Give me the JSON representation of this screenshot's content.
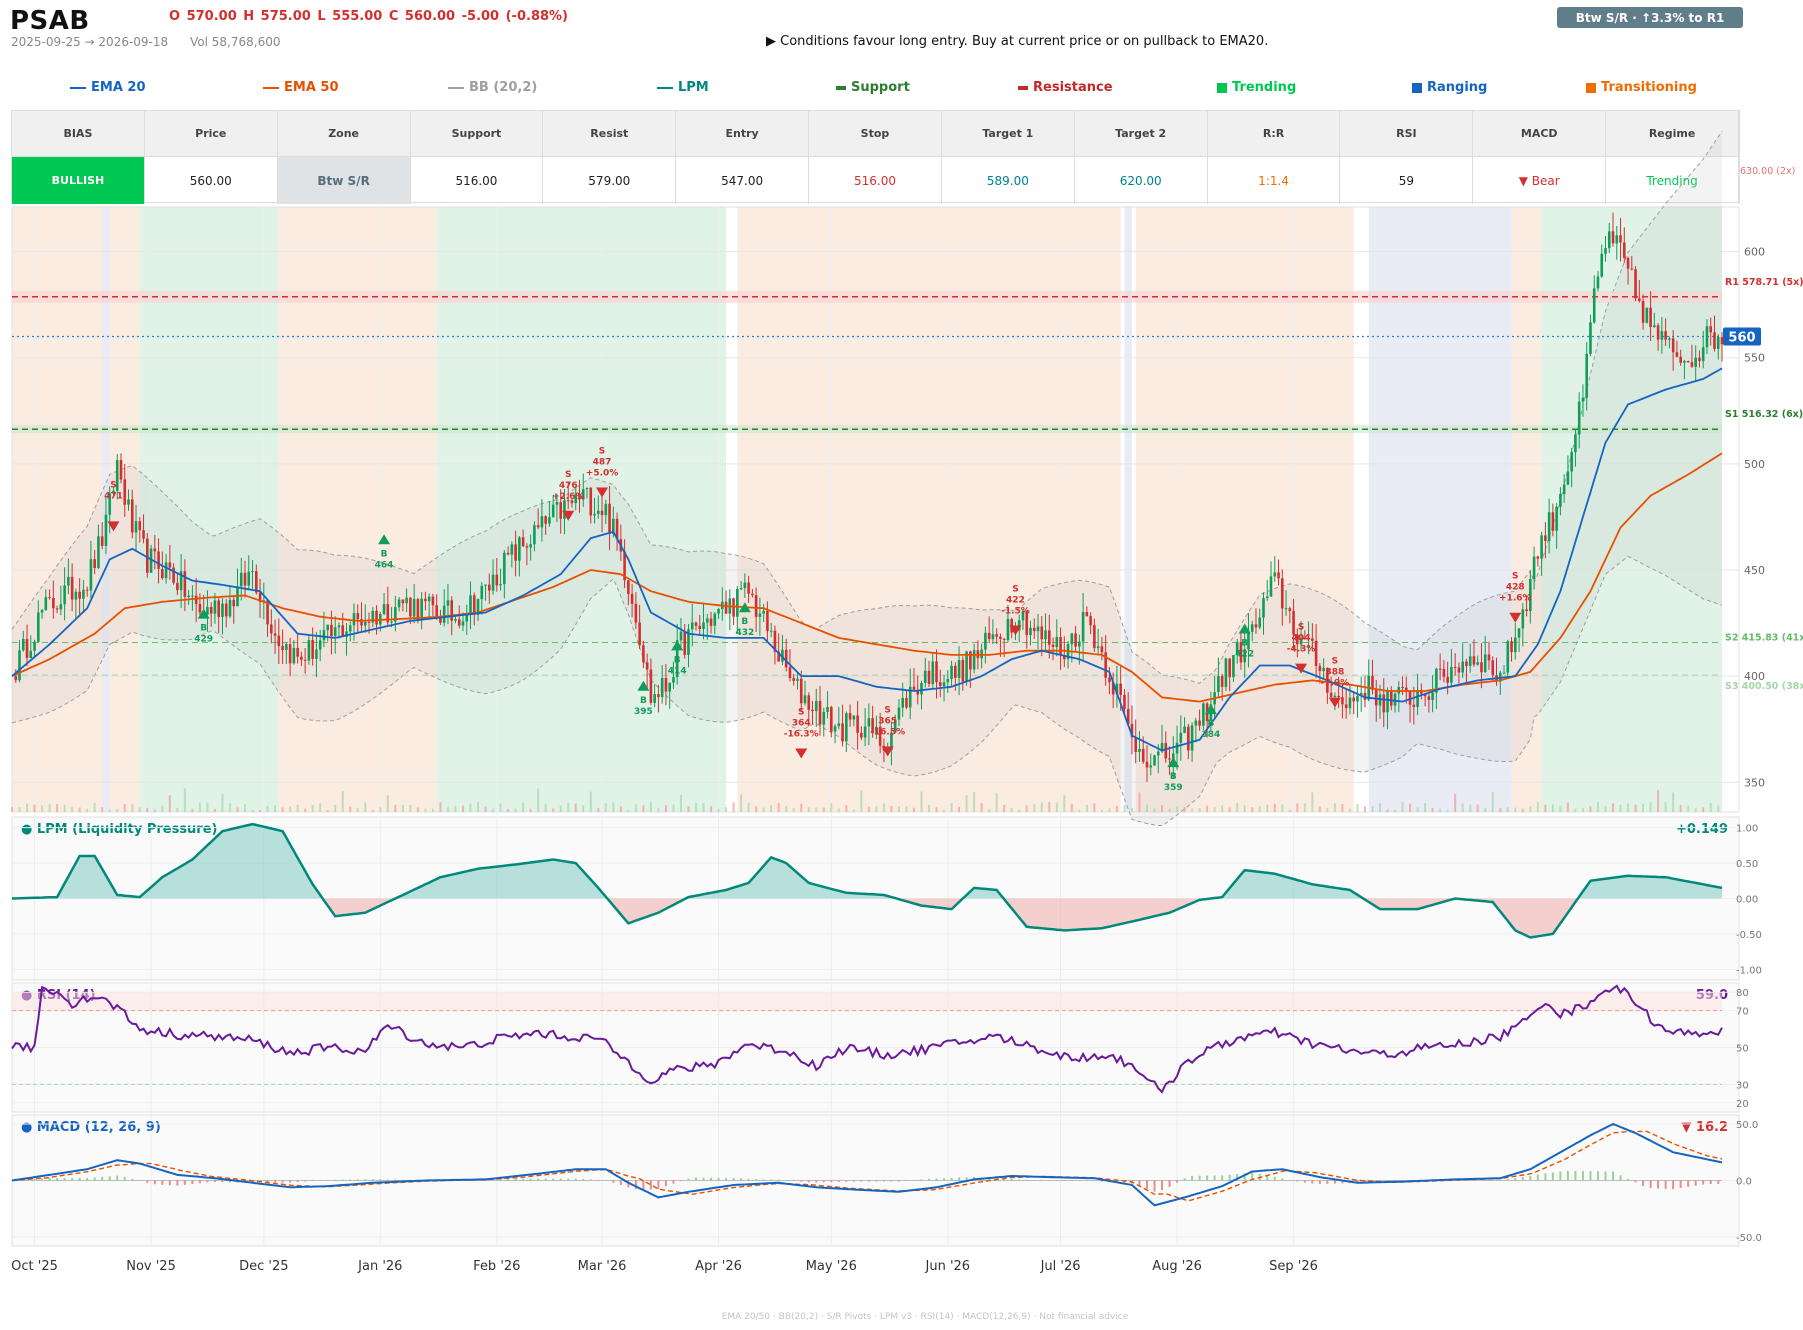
{
  "header": {
    "ticker": "PSAB",
    "ohlc": "O 570.00   H 575.00   L 555.00   C 560.00   -5.00  (-0.88%)",
    "date_range": "2025-09-25 → 2026-09-18",
    "volume": "Vol 58,768,600",
    "advice": "▶  Conditions favour long entry. Buy at current price or on pullback to EMA20.",
    "badge": "Btw S/R  ·  ↑3.3% to R1"
  },
  "legend": [
    {
      "label": "EMA 20",
      "color": "#1565c0",
      "kind": "line"
    },
    {
      "label": "EMA 50",
      "color": "#e65100",
      "kind": "line"
    },
    {
      "label": "BB (20,2)",
      "color": "#9e9e9e",
      "kind": "line"
    },
    {
      "label": "LPM",
      "color": "#00897b",
      "kind": "line"
    },
    {
      "label": "Support",
      "color": "#2e7d32",
      "kind": "bar"
    },
    {
      "label": "Resistance",
      "color": "#c62828",
      "kind": "bar"
    },
    {
      "label": "Trending",
      "color": "#00c853",
      "kind": "square"
    },
    {
      "label": "Ranging",
      "color": "#1565c0",
      "kind": "square"
    },
    {
      "label": "Transitioning",
      "color": "#ef6c00",
      "kind": "square"
    }
  ],
  "summary": {
    "headers": [
      "BIAS",
      "Price",
      "Zone",
      "Support",
      "Resist",
      "Entry",
      "Stop",
      "Target 1",
      "Target 2",
      "R:R",
      "RSI",
      "MACD",
      "Regime"
    ],
    "values": [
      "BULLISH",
      "560.00",
      "Btw S/R",
      "516.00",
      "579.00",
      "547.00",
      "516.00",
      "589.00",
      "620.00",
      "1:1.4",
      "59",
      "▼ Bear",
      "Trending"
    ],
    "value_colors": [
      "#ffffff",
      "#222222",
      "#546e7a",
      "#222222",
      "#222222",
      "#222222",
      "#d32f2f",
      "#00838f",
      "#00838f",
      "#ef6c00",
      "#222222",
      "#d32f2f",
      "#00c853"
    ],
    "extra_label": "630.00 (2x)"
  },
  "panels": {
    "lpm": {
      "title": "● LPM (Liquidity Pressure)",
      "value": "+0.149",
      "ticks": [
        "1.00",
        "0.50",
        "0.00",
        "-0.50",
        "-1.00"
      ]
    },
    "rsi": {
      "title": "● RSI (14)",
      "value": "59.0",
      "ticks": [
        "80",
        "70",
        "50",
        "30",
        "20"
      ]
    },
    "macd": {
      "title": "● MACD (12, 26, 9)",
      "value": "▼ 16.2",
      "ticks": [
        "50.0",
        "0.0",
        "-50.0"
      ]
    }
  },
  "footer": "EMA 20/50  ·  BB(20,2)  ·  S/R Pivots  ·  LPM v3  ·  RSI(14)  ·  MACD(12,26,9)  ·  Not financial advice",
  "chart_data": {
    "type": "candlestick",
    "x_range": [
      "2025-09-25",
      "2026-09-18"
    ],
    "ylim": [
      336,
      621
    ],
    "y_ticks": [
      350,
      400,
      450,
      500,
      550,
      600
    ],
    "x_labels": [
      "Oct '25",
      "Nov '25",
      "Dec '25",
      "Jan '26",
      "Feb '26",
      "Mar '26",
      "Apr '26",
      "May '26",
      "Jun '26",
      "Jul '26",
      "Aug '26",
      "Sep '26"
    ],
    "last_price": "560",
    "levels": [
      {
        "label": "R1 578.71 (5x)",
        "value": 578.71,
        "color": "#d32f2f",
        "kind": "resistance"
      },
      {
        "label": "S1 516.32 (6x)",
        "value": 516.32,
        "color": "#2e7d32",
        "kind": "support"
      },
      {
        "label": "S2 415.83 (41x)",
        "value": 415.83,
        "color": "#66bb6a",
        "kind": "support"
      },
      {
        "label": "S3 400.50 (38x)",
        "value": 400.5,
        "color": "#a5d6a7",
        "kind": "support"
      }
    ],
    "regimes": [
      {
        "start": 0,
        "end": 24,
        "regime": "Transitioning"
      },
      {
        "start": 24,
        "end": 26,
        "regime": "Ranging"
      },
      {
        "start": 26,
        "end": 34,
        "regime": "Transitioning"
      },
      {
        "start": 34,
        "end": 71,
        "regime": "Trending"
      },
      {
        "start": 71,
        "end": 113,
        "regime": "Transitioning"
      },
      {
        "start": 113,
        "end": 190,
        "regime": "Trending"
      },
      {
        "start": 193,
        "end": 295,
        "regime": "Transitioning"
      },
      {
        "start": 296,
        "end": 298,
        "regime": "Ranging"
      },
      {
        "start": 299,
        "end": 357,
        "regime": "Transitioning"
      },
      {
        "start": 361,
        "end": 399,
        "regime": "Ranging"
      },
      {
        "start": 399,
        "end": 407,
        "regime": "Transitioning"
      },
      {
        "start": 407,
        "end": 455,
        "regime": "Trending"
      }
    ],
    "signals": [
      {
        "side": "S",
        "value": "471",
        "pct": "",
        "date_idx": 27,
        "price": 471
      },
      {
        "side": "B",
        "value": "429",
        "pct": "",
        "date_idx": 51,
        "price": 429
      },
      {
        "side": "B",
        "value": "464",
        "pct": "",
        "date_idx": 99,
        "price": 464
      },
      {
        "side": "S",
        "value": "476",
        "pct": "+2.6%",
        "date_idx": 148,
        "price": 476
      },
      {
        "side": "S",
        "value": "487",
        "pct": "+5.0%",
        "date_idx": 157,
        "price": 487
      },
      {
        "side": "B",
        "value": "395",
        "pct": "",
        "date_idx": 168,
        "price": 395
      },
      {
        "side": "B",
        "value": "414",
        "pct": "",
        "date_idx": 177,
        "price": 414
      },
      {
        "side": "B",
        "value": "432",
        "pct": "",
        "date_idx": 195,
        "price": 432
      },
      {
        "side": "S",
        "value": "364",
        "pct": "-16.3%",
        "date_idx": 210,
        "price": 364
      },
      {
        "side": "S",
        "value": "365",
        "pct": "-16.5%",
        "date_idx": 233,
        "price": 365
      },
      {
        "side": "S",
        "value": "422",
        "pct": "-1.5%",
        "date_idx": 267,
        "price": 422
      },
      {
        "side": "B",
        "value": "359",
        "pct": "",
        "date_idx": 309,
        "price": 359
      },
      {
        "side": "B",
        "value": "384",
        "pct": "",
        "date_idx": 319,
        "price": 384
      },
      {
        "side": "B",
        "value": "422",
        "pct": "",
        "date_idx": 328,
        "price": 422
      },
      {
        "side": "S",
        "value": "404",
        "pct": "-4.3%",
        "date_idx": 343,
        "price": 404
      },
      {
        "side": "S",
        "value": "388",
        "pct": "-7.9%",
        "date_idx": 352,
        "price": 388
      },
      {
        "side": "S",
        "value": "428",
        "pct": "+1.6%",
        "date_idx": 400,
        "price": 428
      }
    ],
    "close_anchors": [
      [
        0,
        400
      ],
      [
        8,
        430
      ],
      [
        15,
        440
      ],
      [
        20,
        445
      ],
      [
        25,
        470
      ],
      [
        28,
        500
      ],
      [
        32,
        470
      ],
      [
        36,
        455
      ],
      [
        42,
        450
      ],
      [
        50,
        430
      ],
      [
        58,
        435
      ],
      [
        64,
        450
      ],
      [
        70,
        420
      ],
      [
        76,
        408
      ],
      [
        82,
        415
      ],
      [
        90,
        425
      ],
      [
        98,
        430
      ],
      [
        104,
        435
      ],
      [
        110,
        432
      ],
      [
        118,
        428
      ],
      [
        126,
        440
      ],
      [
        132,
        455
      ],
      [
        138,
        465
      ],
      [
        146,
        478
      ],
      [
        152,
        485
      ],
      [
        158,
        478
      ],
      [
        162,
        458
      ],
      [
        166,
        430
      ],
      [
        170,
        390
      ],
      [
        174,
        395
      ],
      [
        178,
        415
      ],
      [
        184,
        425
      ],
      [
        190,
        432
      ],
      [
        196,
        440
      ],
      [
        202,
        418
      ],
      [
        208,
        395
      ],
      [
        214,
        385
      ],
      [
        220,
        375
      ],
      [
        226,
        378
      ],
      [
        232,
        368
      ],
      [
        238,
        390
      ],
      [
        244,
        402
      ],
      [
        250,
        400
      ],
      [
        256,
        408
      ],
      [
        262,
        420
      ],
      [
        268,
        430
      ],
      [
        274,
        418
      ],
      [
        280,
        412
      ],
      [
        286,
        428
      ],
      [
        290,
        410
      ],
      [
        294,
        393
      ],
      [
        298,
        370
      ],
      [
        304,
        360
      ],
      [
        310,
        365
      ],
      [
        316,
        378
      ],
      [
        322,
        400
      ],
      [
        330,
        420
      ],
      [
        336,
        445
      ],
      [
        342,
        420
      ],
      [
        348,
        405
      ],
      [
        354,
        385
      ],
      [
        360,
        395
      ],
      [
        366,
        388
      ],
      [
        372,
        390
      ],
      [
        378,
        395
      ],
      [
        384,
        405
      ],
      [
        390,
        410
      ],
      [
        396,
        400
      ],
      [
        402,
        430
      ],
      [
        406,
        460
      ],
      [
        410,
        475
      ],
      [
        414,
        500
      ],
      [
        418,
        530
      ],
      [
        421,
        580
      ],
      [
        424,
        605
      ],
      [
        428,
        600
      ],
      [
        432,
        580
      ],
      [
        436,
        565
      ],
      [
        440,
        555
      ],
      [
        446,
        550
      ],
      [
        452,
        560
      ],
      [
        455,
        560
      ]
    ],
    "ema20_anchors": [
      [
        0,
        400
      ],
      [
        10,
        415
      ],
      [
        20,
        432
      ],
      [
        26,
        455
      ],
      [
        32,
        460
      ],
      [
        40,
        452
      ],
      [
        48,
        445
      ],
      [
        56,
        443
      ],
      [
        66,
        440
      ],
      [
        76,
        420
      ],
      [
        86,
        418
      ],
      [
        96,
        422
      ],
      [
        106,
        426
      ],
      [
        116,
        428
      ],
      [
        126,
        430
      ],
      [
        136,
        438
      ],
      [
        146,
        448
      ],
      [
        154,
        465
      ],
      [
        160,
        468
      ],
      [
        164,
        455
      ],
      [
        170,
        430
      ],
      [
        180,
        420
      ],
      [
        190,
        418
      ],
      [
        200,
        418
      ],
      [
        210,
        400
      ],
      [
        220,
        400
      ],
      [
        230,
        395
      ],
      [
        240,
        393
      ],
      [
        250,
        395
      ],
      [
        258,
        400
      ],
      [
        266,
        408
      ],
      [
        274,
        412
      ],
      [
        284,
        408
      ],
      [
        292,
        402
      ],
      [
        298,
        372
      ],
      [
        306,
        365
      ],
      [
        316,
        370
      ],
      [
        324,
        390
      ],
      [
        332,
        405
      ],
      [
        340,
        405
      ],
      [
        350,
        398
      ],
      [
        360,
        390
      ],
      [
        370,
        388
      ],
      [
        380,
        394
      ],
      [
        390,
        398
      ],
      [
        400,
        400
      ],
      [
        406,
        415
      ],
      [
        412,
        440
      ],
      [
        418,
        475
      ],
      [
        424,
        510
      ],
      [
        430,
        528
      ],
      [
        440,
        535
      ],
      [
        450,
        540
      ],
      [
        455,
        545
      ]
    ],
    "ema50_anchors": [
      [
        0,
        400
      ],
      [
        10,
        408
      ],
      [
        22,
        420
      ],
      [
        30,
        432
      ],
      [
        40,
        435
      ],
      [
        52,
        437
      ],
      [
        62,
        438
      ],
      [
        72,
        432
      ],
      [
        82,
        428
      ],
      [
        92,
        426
      ],
      [
        104,
        427
      ],
      [
        114,
        428
      ],
      [
        124,
        430
      ],
      [
        134,
        436
      ],
      [
        144,
        442
      ],
      [
        154,
        450
      ],
      [
        162,
        448
      ],
      [
        170,
        440
      ],
      [
        180,
        435
      ],
      [
        190,
        433
      ],
      [
        200,
        432
      ],
      [
        210,
        425
      ],
      [
        220,
        418
      ],
      [
        230,
        415
      ],
      [
        240,
        412
      ],
      [
        250,
        410
      ],
      [
        260,
        410
      ],
      [
        270,
        412
      ],
      [
        280,
        412
      ],
      [
        290,
        410
      ],
      [
        298,
        402
      ],
      [
        306,
        390
      ],
      [
        316,
        388
      ],
      [
        326,
        392
      ],
      [
        336,
        396
      ],
      [
        346,
        398
      ],
      [
        356,
        396
      ],
      [
        366,
        393
      ],
      [
        376,
        393
      ],
      [
        386,
        396
      ],
      [
        396,
        398
      ],
      [
        404,
        402
      ],
      [
        412,
        418
      ],
      [
        420,
        440
      ],
      [
        428,
        470
      ],
      [
        436,
        485
      ],
      [
        446,
        495
      ],
      [
        455,
        505
      ]
    ],
    "lpm": {
      "ylim": [
        -1.15,
        1.15
      ],
      "last": 0.149
    },
    "rsi": {
      "ylim": [
        15,
        85
      ],
      "last": 59.0
    },
    "macd": {
      "ylim": [
        -58,
        58
      ],
      "last": 16.2
    }
  }
}
